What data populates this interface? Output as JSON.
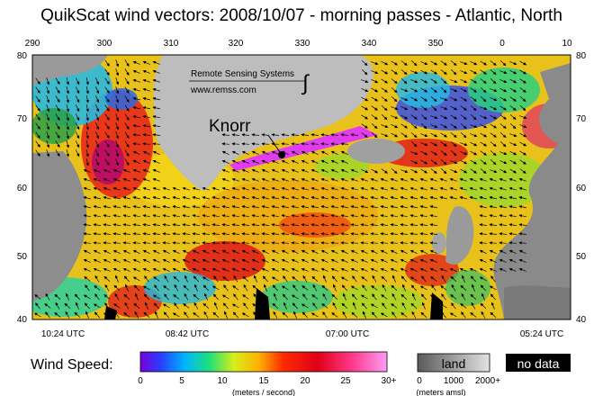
{
  "title": "QuikScat wind vectors: 2008/10/07 - morning passes - Atlantic, North",
  "map": {
    "lon_ticks": [
      "290",
      "300",
      "310",
      "320",
      "330",
      "340",
      "350",
      "0",
      "10"
    ],
    "lat_ticks": [
      "80",
      "70",
      "60",
      "50",
      "40"
    ],
    "pass_times": [
      "10:24 UTC",
      "08:42 UTC",
      "07:00 UTC",
      "05:24 UTC"
    ],
    "credit_line1": "Remote Sensing Systems",
    "credit_line2": "www.remss.com",
    "annotation": "Knorr"
  },
  "legend": {
    "wind_label": "Wind Speed:",
    "speed_ticks": [
      "0",
      "5",
      "10",
      "15",
      "20",
      "25",
      "30+"
    ],
    "speed_units": "(meters / second)",
    "land_label": "land",
    "land_ticks": [
      "0",
      "1000",
      "2000+"
    ],
    "land_units": "(meters amsl)",
    "nodata_label": "no data"
  },
  "colors": {
    "ocean_fill": "#e8c21a",
    "land_gray": "#a9a9a9",
    "land_light": "#d8d8d8",
    "no_data": "#000000",
    "knorr_track": "#e23cf0"
  }
}
